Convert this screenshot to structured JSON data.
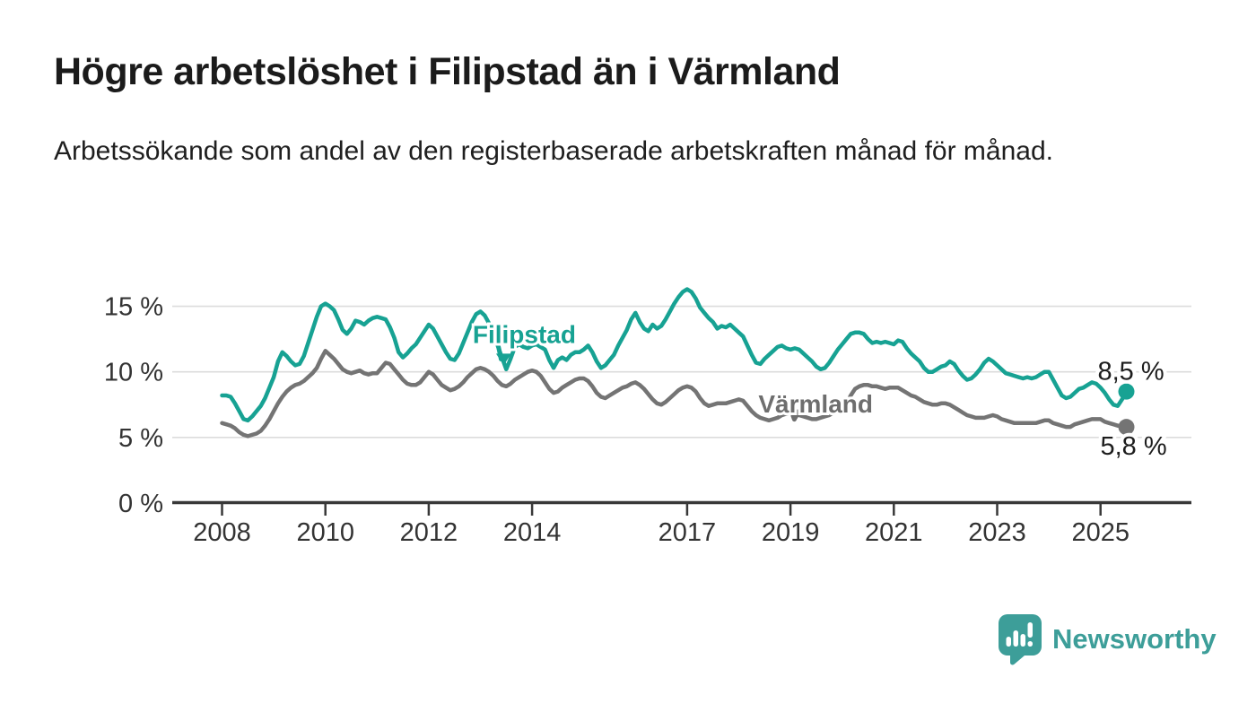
{
  "header": {
    "title": "Högre arbetslöshet i Filipstad än i Värmland",
    "subtitle": "Arbetssökande som andel av den registerbaserade arbetskraften månad för månad."
  },
  "chart_data": {
    "type": "line",
    "title": "Högre arbetslöshet i Filipstad än i Värmland",
    "subtitle": "Arbetssökande som andel av den registerbaserade arbetskraften månad för månad.",
    "unit": "%",
    "x_start": 2008.0,
    "x_end": 2025.5,
    "x_step_months": 1,
    "ylim": [
      0,
      16.5
    ],
    "grid": "horizontal",
    "gridline_color": "#dcdcdc",
    "axis_color": "#383838",
    "tick_label_color": "#333333",
    "y_ticks": [
      {
        "value": 0,
        "label": "0 %"
      },
      {
        "value": 5,
        "label": "5 %"
      },
      {
        "value": 10,
        "label": "10 %"
      },
      {
        "value": 15,
        "label": "15 %"
      }
    ],
    "x_ticks": [
      {
        "value": 2008,
        "label": "2008"
      },
      {
        "value": 2010,
        "label": "2010"
      },
      {
        "value": 2012,
        "label": "2012"
      },
      {
        "value": 2014,
        "label": "2014"
      },
      {
        "value": 2017,
        "label": "2017"
      },
      {
        "value": 2019,
        "label": "2019"
      },
      {
        "value": 2021,
        "label": "2021"
      },
      {
        "value": 2023,
        "label": "2023"
      },
      {
        "value": 2025,
        "label": "2025"
      }
    ],
    "series": [
      {
        "name": "Filipstad",
        "color": "#17a293",
        "end_value": 8.5,
        "end_label": "8,5 %",
        "values": [
          8.2,
          8.2,
          8.1,
          7.6,
          7.0,
          6.4,
          6.3,
          6.6,
          7.0,
          7.4,
          8.0,
          8.8,
          9.6,
          10.8,
          11.5,
          11.2,
          10.8,
          10.5,
          10.6,
          11.2,
          12.2,
          13.2,
          14.2,
          15.0,
          15.2,
          15.0,
          14.7,
          14.0,
          13.2,
          12.9,
          13.3,
          13.9,
          13.8,
          13.6,
          13.9,
          14.1,
          14.2,
          14.1,
          14.0,
          13.4,
          12.6,
          11.5,
          11.1,
          11.4,
          11.8,
          12.1,
          12.6,
          13.1,
          13.6,
          13.3,
          12.7,
          12.1,
          11.5,
          11.0,
          10.9,
          11.4,
          12.2,
          13.0,
          13.8,
          14.4,
          14.6,
          14.3,
          13.7,
          12.9,
          12.0,
          11.1,
          10.2,
          11.0,
          11.9,
          12.1,
          11.9,
          11.8,
          12.0,
          12.1,
          11.9,
          11.7,
          10.9,
          10.3,
          10.9,
          11.1,
          10.9,
          11.3,
          11.5,
          11.5,
          11.7,
          12.0,
          11.5,
          10.8,
          10.3,
          10.5,
          10.9,
          11.3,
          12.0,
          12.6,
          13.2,
          14.0,
          14.5,
          13.8,
          13.3,
          13.1,
          13.6,
          13.3,
          13.5,
          14.0,
          14.6,
          15.2,
          15.7,
          16.1,
          16.3,
          16.1,
          15.6,
          14.9,
          14.5,
          14.1,
          13.8,
          13.3,
          13.5,
          13.4,
          13.6,
          13.3,
          13.0,
          12.7,
          12.0,
          11.3,
          10.7,
          10.6,
          11.0,
          11.3,
          11.6,
          11.9,
          12.0,
          11.8,
          11.7,
          11.8,
          11.7,
          11.4,
          11.1,
          10.8,
          10.4,
          10.2,
          10.3,
          10.7,
          11.2,
          11.7,
          12.1,
          12.5,
          12.9,
          13.0,
          13.0,
          12.9,
          12.5,
          12.2,
          12.3,
          12.2,
          12.3,
          12.2,
          12.1,
          12.4,
          12.3,
          11.8,
          11.4,
          11.1,
          10.8,
          10.3,
          10.0,
          10.0,
          10.2,
          10.4,
          10.5,
          10.8,
          10.6,
          10.1,
          9.7,
          9.4,
          9.5,
          9.8,
          10.2,
          10.7,
          11.0,
          10.8,
          10.5,
          10.2,
          9.9,
          9.8,
          9.7,
          9.6,
          9.5,
          9.6,
          9.5,
          9.6,
          9.8,
          10.0,
          10.0,
          9.4,
          8.8,
          8.2,
          8.0,
          8.1,
          8.4,
          8.7,
          8.8,
          9.0,
          9.2,
          9.1,
          8.8,
          8.4,
          7.9,
          7.5,
          7.4,
          7.9,
          8.5
        ]
      },
      {
        "name": "Värmland",
        "color": "#747474",
        "end_value": 5.8,
        "end_label": "5,8 %",
        "values": [
          6.1,
          6.0,
          5.9,
          5.7,
          5.4,
          5.2,
          5.1,
          5.2,
          5.3,
          5.5,
          5.9,
          6.4,
          7.0,
          7.6,
          8.1,
          8.5,
          8.8,
          9.0,
          9.1,
          9.3,
          9.6,
          9.9,
          10.3,
          11.0,
          11.6,
          11.3,
          11.0,
          10.6,
          10.2,
          10.0,
          9.9,
          10.0,
          10.1,
          9.9,
          9.8,
          9.9,
          9.9,
          10.3,
          10.7,
          10.6,
          10.2,
          9.8,
          9.4,
          9.1,
          9.0,
          9.0,
          9.2,
          9.6,
          10.0,
          9.8,
          9.4,
          9.0,
          8.8,
          8.6,
          8.7,
          8.9,
          9.2,
          9.6,
          9.9,
          10.2,
          10.3,
          10.2,
          10.0,
          9.7,
          9.3,
          9.0,
          8.9,
          9.1,
          9.4,
          9.6,
          9.8,
          10.0,
          10.1,
          10.0,
          9.7,
          9.2,
          8.7,
          8.4,
          8.5,
          8.8,
          9.0,
          9.2,
          9.4,
          9.5,
          9.5,
          9.3,
          8.9,
          8.4,
          8.1,
          8.0,
          8.2,
          8.4,
          8.6,
          8.8,
          8.9,
          9.1,
          9.2,
          9.0,
          8.7,
          8.3,
          7.9,
          7.6,
          7.5,
          7.7,
          8.0,
          8.3,
          8.6,
          8.8,
          8.9,
          8.8,
          8.5,
          8.0,
          7.6,
          7.4,
          7.5,
          7.6,
          7.6,
          7.6,
          7.7,
          7.8,
          7.9,
          7.8,
          7.4,
          7.0,
          6.7,
          6.5,
          6.4,
          6.3,
          6.4,
          6.5,
          6.7,
          6.8,
          6.9,
          6.9,
          6.7,
          6.6,
          6.5,
          6.4,
          6.4,
          6.5,
          6.6,
          6.7,
          6.9,
          7.1,
          7.3,
          7.6,
          8.2,
          8.7,
          8.9,
          9.0,
          9.0,
          8.9,
          8.9,
          8.8,
          8.7,
          8.8,
          8.8,
          8.8,
          8.6,
          8.4,
          8.2,
          8.1,
          7.9,
          7.7,
          7.6,
          7.5,
          7.5,
          7.6,
          7.6,
          7.5,
          7.3,
          7.1,
          6.9,
          6.7,
          6.6,
          6.5,
          6.5,
          6.5,
          6.6,
          6.7,
          6.6,
          6.4,
          6.3,
          6.2,
          6.1,
          6.1,
          6.1,
          6.1,
          6.1,
          6.1,
          6.2,
          6.3,
          6.3,
          6.1,
          6.0,
          5.9,
          5.8,
          5.8,
          6.0,
          6.1,
          6.2,
          6.3,
          6.4,
          6.4,
          6.4,
          6.2,
          6.1,
          6.0,
          5.9,
          5.9,
          5.8
        ]
      }
    ],
    "annotations": [
      {
        "text": "Filipstad",
        "color": "#17a293",
        "x": 2012.85,
        "y": 12.2,
        "arrow_from": {
          "x": 2013.35,
          "y": 11.9
        },
        "arrow_to": {
          "x": 2013.45,
          "y": 10.5
        }
      },
      {
        "text": "Värmland",
        "color": "#6e6e6e",
        "x": 2018.38,
        "y": 6.9,
        "arrow_from": {
          "x": 2019.05,
          "y": 6.65
        },
        "arrow_to": {
          "x": 2019.1,
          "y": 6.25
        }
      }
    ],
    "legend_position": "inline-annotations"
  },
  "footer": {
    "brand": "Newsworthy",
    "brand_color": "#3d9e99",
    "logo_icon": "newsworthy-bar-chart-bubble"
  }
}
